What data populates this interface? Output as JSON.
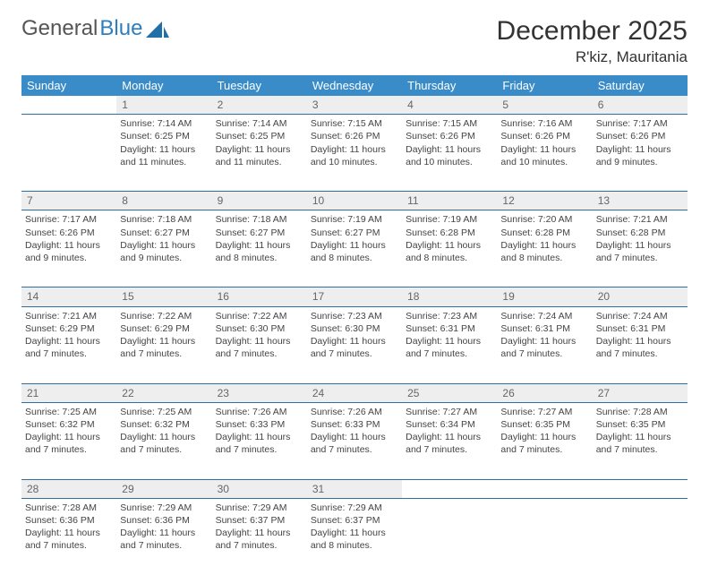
{
  "logo": {
    "text1": "General",
    "text2": "Blue"
  },
  "title": "December 2025",
  "location": "R'kiz, Mauritania",
  "weekdays": [
    "Sunday",
    "Monday",
    "Tuesday",
    "Wednesday",
    "Thursday",
    "Friday",
    "Saturday"
  ],
  "colors": {
    "header_bg": "#3a8cc9",
    "header_text": "#ffffff",
    "daynum_bg": "#eeeeee",
    "daynum_text": "#666666",
    "row_border": "#2f6fa0",
    "body_text": "#444444",
    "title_text": "#333333"
  },
  "weeks": [
    [
      {
        "day": "",
        "lines": []
      },
      {
        "day": "1",
        "lines": [
          "Sunrise: 7:14 AM",
          "Sunset: 6:25 PM",
          "Daylight: 11 hours",
          "and 11 minutes."
        ]
      },
      {
        "day": "2",
        "lines": [
          "Sunrise: 7:14 AM",
          "Sunset: 6:25 PM",
          "Daylight: 11 hours",
          "and 11 minutes."
        ]
      },
      {
        "day": "3",
        "lines": [
          "Sunrise: 7:15 AM",
          "Sunset: 6:26 PM",
          "Daylight: 11 hours",
          "and 10 minutes."
        ]
      },
      {
        "day": "4",
        "lines": [
          "Sunrise: 7:15 AM",
          "Sunset: 6:26 PM",
          "Daylight: 11 hours",
          "and 10 minutes."
        ]
      },
      {
        "day": "5",
        "lines": [
          "Sunrise: 7:16 AM",
          "Sunset: 6:26 PM",
          "Daylight: 11 hours",
          "and 10 minutes."
        ]
      },
      {
        "day": "6",
        "lines": [
          "Sunrise: 7:17 AM",
          "Sunset: 6:26 PM",
          "Daylight: 11 hours",
          "and 9 minutes."
        ]
      }
    ],
    [
      {
        "day": "7",
        "lines": [
          "Sunrise: 7:17 AM",
          "Sunset: 6:26 PM",
          "Daylight: 11 hours",
          "and 9 minutes."
        ]
      },
      {
        "day": "8",
        "lines": [
          "Sunrise: 7:18 AM",
          "Sunset: 6:27 PM",
          "Daylight: 11 hours",
          "and 9 minutes."
        ]
      },
      {
        "day": "9",
        "lines": [
          "Sunrise: 7:18 AM",
          "Sunset: 6:27 PM",
          "Daylight: 11 hours",
          "and 8 minutes."
        ]
      },
      {
        "day": "10",
        "lines": [
          "Sunrise: 7:19 AM",
          "Sunset: 6:27 PM",
          "Daylight: 11 hours",
          "and 8 minutes."
        ]
      },
      {
        "day": "11",
        "lines": [
          "Sunrise: 7:19 AM",
          "Sunset: 6:28 PM",
          "Daylight: 11 hours",
          "and 8 minutes."
        ]
      },
      {
        "day": "12",
        "lines": [
          "Sunrise: 7:20 AM",
          "Sunset: 6:28 PM",
          "Daylight: 11 hours",
          "and 8 minutes."
        ]
      },
      {
        "day": "13",
        "lines": [
          "Sunrise: 7:21 AM",
          "Sunset: 6:28 PM",
          "Daylight: 11 hours",
          "and 7 minutes."
        ]
      }
    ],
    [
      {
        "day": "14",
        "lines": [
          "Sunrise: 7:21 AM",
          "Sunset: 6:29 PM",
          "Daylight: 11 hours",
          "and 7 minutes."
        ]
      },
      {
        "day": "15",
        "lines": [
          "Sunrise: 7:22 AM",
          "Sunset: 6:29 PM",
          "Daylight: 11 hours",
          "and 7 minutes."
        ]
      },
      {
        "day": "16",
        "lines": [
          "Sunrise: 7:22 AM",
          "Sunset: 6:30 PM",
          "Daylight: 11 hours",
          "and 7 minutes."
        ]
      },
      {
        "day": "17",
        "lines": [
          "Sunrise: 7:23 AM",
          "Sunset: 6:30 PM",
          "Daylight: 11 hours",
          "and 7 minutes."
        ]
      },
      {
        "day": "18",
        "lines": [
          "Sunrise: 7:23 AM",
          "Sunset: 6:31 PM",
          "Daylight: 11 hours",
          "and 7 minutes."
        ]
      },
      {
        "day": "19",
        "lines": [
          "Sunrise: 7:24 AM",
          "Sunset: 6:31 PM",
          "Daylight: 11 hours",
          "and 7 minutes."
        ]
      },
      {
        "day": "20",
        "lines": [
          "Sunrise: 7:24 AM",
          "Sunset: 6:31 PM",
          "Daylight: 11 hours",
          "and 7 minutes."
        ]
      }
    ],
    [
      {
        "day": "21",
        "lines": [
          "Sunrise: 7:25 AM",
          "Sunset: 6:32 PM",
          "Daylight: 11 hours",
          "and 7 minutes."
        ]
      },
      {
        "day": "22",
        "lines": [
          "Sunrise: 7:25 AM",
          "Sunset: 6:32 PM",
          "Daylight: 11 hours",
          "and 7 minutes."
        ]
      },
      {
        "day": "23",
        "lines": [
          "Sunrise: 7:26 AM",
          "Sunset: 6:33 PM",
          "Daylight: 11 hours",
          "and 7 minutes."
        ]
      },
      {
        "day": "24",
        "lines": [
          "Sunrise: 7:26 AM",
          "Sunset: 6:33 PM",
          "Daylight: 11 hours",
          "and 7 minutes."
        ]
      },
      {
        "day": "25",
        "lines": [
          "Sunrise: 7:27 AM",
          "Sunset: 6:34 PM",
          "Daylight: 11 hours",
          "and 7 minutes."
        ]
      },
      {
        "day": "26",
        "lines": [
          "Sunrise: 7:27 AM",
          "Sunset: 6:35 PM",
          "Daylight: 11 hours",
          "and 7 minutes."
        ]
      },
      {
        "day": "27",
        "lines": [
          "Sunrise: 7:28 AM",
          "Sunset: 6:35 PM",
          "Daylight: 11 hours",
          "and 7 minutes."
        ]
      }
    ],
    [
      {
        "day": "28",
        "lines": [
          "Sunrise: 7:28 AM",
          "Sunset: 6:36 PM",
          "Daylight: 11 hours",
          "and 7 minutes."
        ]
      },
      {
        "day": "29",
        "lines": [
          "Sunrise: 7:29 AM",
          "Sunset: 6:36 PM",
          "Daylight: 11 hours",
          "and 7 minutes."
        ]
      },
      {
        "day": "30",
        "lines": [
          "Sunrise: 7:29 AM",
          "Sunset: 6:37 PM",
          "Daylight: 11 hours",
          "and 7 minutes."
        ]
      },
      {
        "day": "31",
        "lines": [
          "Sunrise: 7:29 AM",
          "Sunset: 6:37 PM",
          "Daylight: 11 hours",
          "and 8 minutes."
        ]
      },
      {
        "day": "",
        "lines": []
      },
      {
        "day": "",
        "lines": []
      },
      {
        "day": "",
        "lines": []
      }
    ]
  ]
}
